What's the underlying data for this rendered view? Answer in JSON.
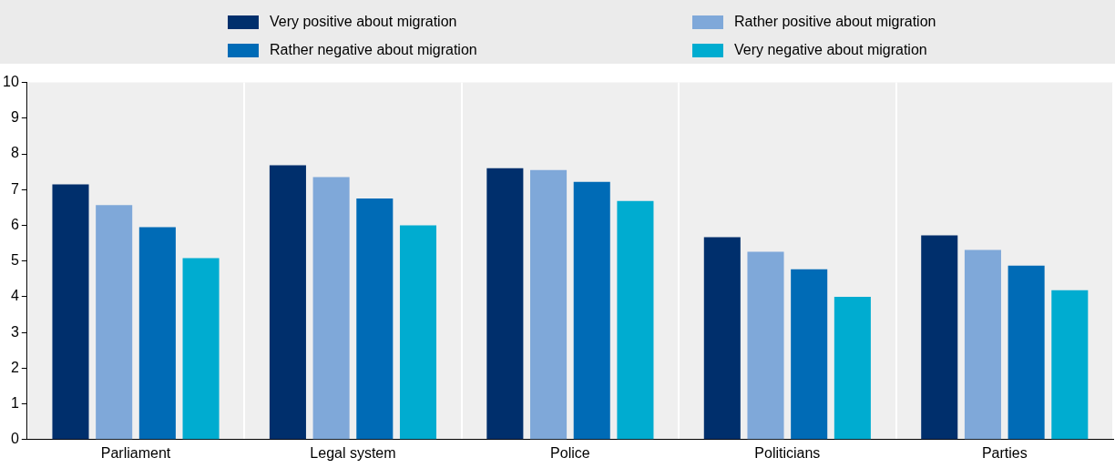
{
  "chart_data": {
    "type": "bar",
    "categories": [
      "Parliament",
      "Legal system",
      "Police",
      "Politicians",
      "Parties"
    ],
    "series": [
      {
        "name": "Very positive about migration",
        "color": "#002f6c",
        "values": [
          7.15,
          7.68,
          7.6,
          5.67,
          5.72
        ]
      },
      {
        "name": "Rather positive about migration",
        "color": "#7fa8d9",
        "values": [
          6.57,
          7.35,
          7.55,
          5.26,
          5.31
        ]
      },
      {
        "name": "Rather negative about migration",
        "color": "#006bb6",
        "values": [
          5.95,
          6.75,
          7.22,
          4.77,
          4.87
        ]
      },
      {
        "name": "Very negative about migration",
        "color": "#00acd0",
        "values": [
          5.08,
          6.0,
          6.68,
          4.0,
          4.18
        ]
      }
    ],
    "ylim": [
      0,
      10
    ],
    "yticks": [
      0,
      1,
      2,
      3,
      4,
      5,
      6,
      7,
      8,
      9,
      10
    ],
    "grid": "x",
    "legend": "top"
  }
}
